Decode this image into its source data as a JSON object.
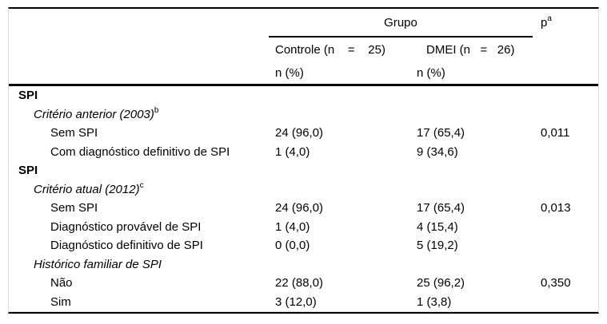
{
  "table": {
    "header": {
      "group_label": "Grupo",
      "p_label": "p",
      "p_sup": "a",
      "col_controle": "Controle (n    =    25)",
      "col_dmei": "DMEI (n   =   26)",
      "col_controle_sub": "n (%)",
      "col_dmei_sub": "n (%)"
    },
    "rows": [
      {
        "type": "section",
        "label": "SPI",
        "sup": "",
        "controle": "",
        "dmei": "",
        "p": ""
      },
      {
        "type": "subsection",
        "label": "Critério anterior (2003)",
        "sup": "b",
        "controle": "",
        "dmei": "",
        "p": ""
      },
      {
        "type": "item",
        "label": "Sem SPI",
        "sup": "",
        "controle": "24 (96,0)",
        "dmei": "17 (65,4)",
        "p": "0,011"
      },
      {
        "type": "item",
        "label": "Com diagnóstico definitivo de SPI",
        "sup": "",
        "controle": "1 (4,0)",
        "dmei": "9 (34,6)",
        "p": ""
      },
      {
        "type": "section",
        "label": "SPI",
        "sup": "",
        "controle": "",
        "dmei": "",
        "p": ""
      },
      {
        "type": "subsection",
        "label": "Critério atual (2012)",
        "sup": "c",
        "controle": "",
        "dmei": "",
        "p": ""
      },
      {
        "type": "item",
        "label": "Sem SPI",
        "sup": "",
        "controle": "24 (96,0)",
        "dmei": "17 (65,4)",
        "p": "0,013"
      },
      {
        "type": "item",
        "label": "Diagnóstico provável de SPI",
        "sup": "",
        "controle": "1 (4,0)",
        "dmei": "4 (15,4)",
        "p": ""
      },
      {
        "type": "item",
        "label": "Diagnóstico definitivo de SPI",
        "sup": "",
        "controle": "0 (0,0)",
        "dmei": "5 (19,2)",
        "p": ""
      },
      {
        "type": "subsection",
        "label": "Histórico familiar de SPI",
        "sup": "",
        "controle": "",
        "dmei": "",
        "p": ""
      },
      {
        "type": "item",
        "label": "Não",
        "sup": "",
        "controle": "22 (88,0)",
        "dmei": "25 (96,2)",
        "p": "0,350"
      },
      {
        "type": "item",
        "label": "Sim",
        "sup": "",
        "controle": "3 (12,0)",
        "dmei": "1 (3,8)",
        "p": ""
      }
    ]
  },
  "colors": {
    "background": "#ffffff",
    "text": "#000000",
    "rule": "#000000",
    "hairline": "#dcdcdc"
  }
}
